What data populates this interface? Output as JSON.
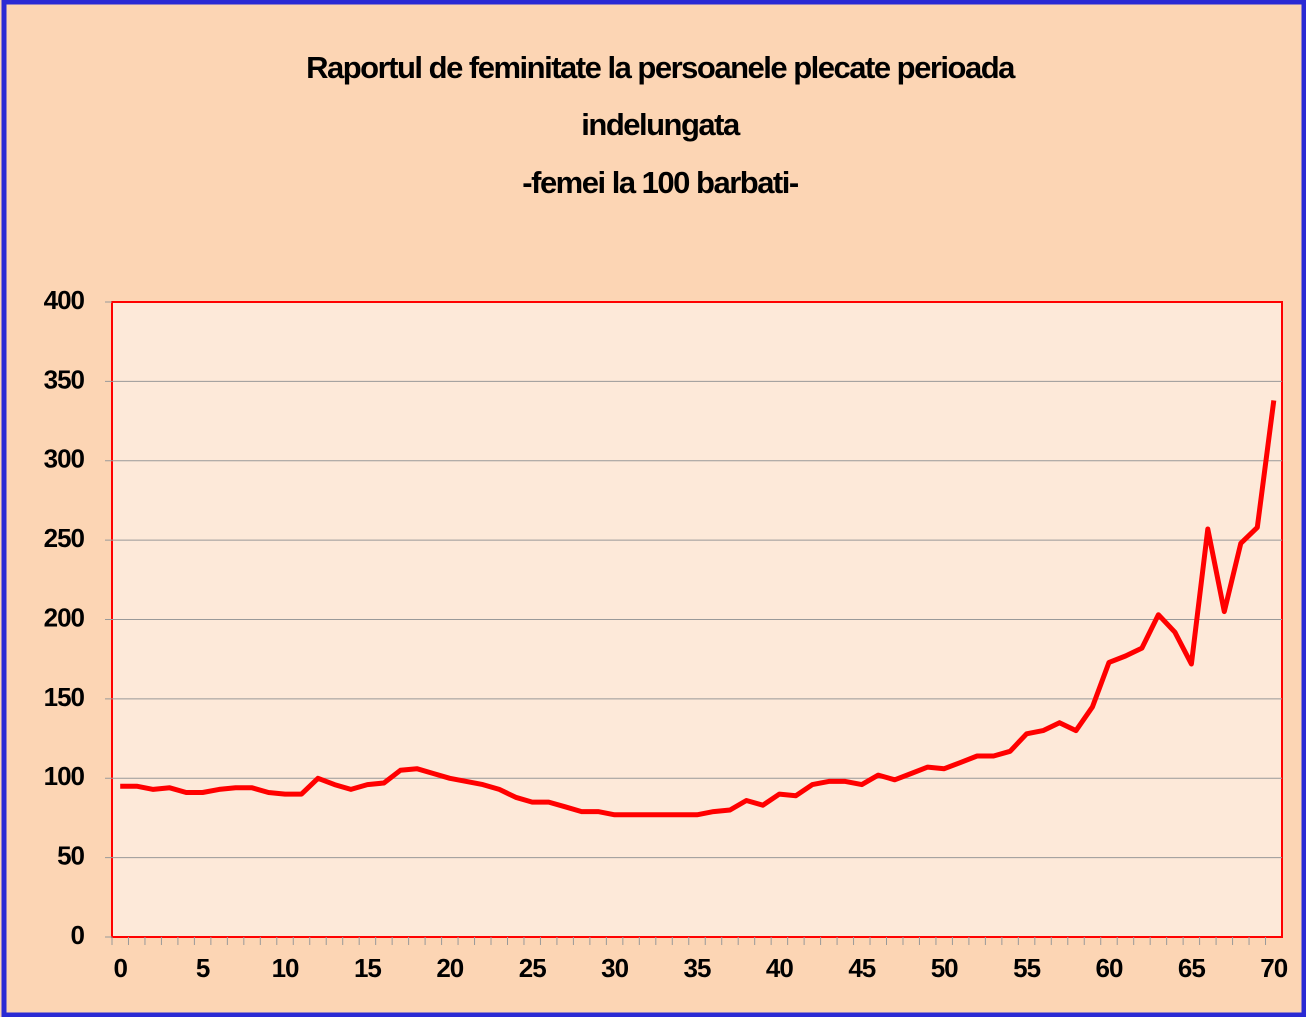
{
  "chart_data": {
    "type": "line",
    "title": [
      "Raportul de feminitate la persoanele plecate perioada",
      "indelungata"
    ],
    "subtitle": "-femei la 100 barbati-",
    "x": [
      0,
      1,
      2,
      3,
      4,
      5,
      6,
      7,
      8,
      9,
      10,
      11,
      12,
      13,
      14,
      15,
      16,
      17,
      18,
      19,
      20,
      21,
      22,
      23,
      24,
      25,
      26,
      27,
      28,
      29,
      30,
      31,
      32,
      33,
      34,
      35,
      36,
      37,
      38,
      39,
      40,
      41,
      42,
      43,
      44,
      45,
      46,
      47,
      48,
      49,
      50,
      51,
      52,
      53,
      54,
      55,
      56,
      57,
      58,
      59,
      60,
      61,
      62,
      63,
      64,
      65,
      66,
      67,
      68,
      69,
      70
    ],
    "series": [
      {
        "name": "Raportul de feminitate",
        "color": "#ff0000",
        "values": [
          95,
          95,
          93,
          94,
          91,
          91,
          93,
          94,
          94,
          91,
          90,
          90,
          100,
          96,
          93,
          96,
          97,
          105,
          106,
          103,
          100,
          98,
          96,
          93,
          88,
          85,
          85,
          82,
          79,
          79,
          77,
          77,
          77,
          77,
          77,
          77,
          79,
          80,
          86,
          83,
          90,
          89,
          96,
          98,
          98,
          96,
          102,
          99,
          103,
          107,
          106,
          110,
          114,
          114,
          117,
          128,
          130,
          135,
          130,
          145,
          173,
          177,
          182,
          203,
          192,
          172,
          257,
          205,
          248,
          258,
          338
        ]
      }
    ],
    "xlim": [
      -0.5,
      70.5
    ],
    "xticks": [
      0,
      5,
      10,
      15,
      20,
      25,
      30,
      35,
      40,
      45,
      50,
      55,
      60,
      65,
      70
    ],
    "ylim": [
      0,
      400
    ],
    "yticks": [
      0,
      50,
      100,
      150,
      200,
      250,
      300,
      350,
      400
    ],
    "grid": true
  }
}
